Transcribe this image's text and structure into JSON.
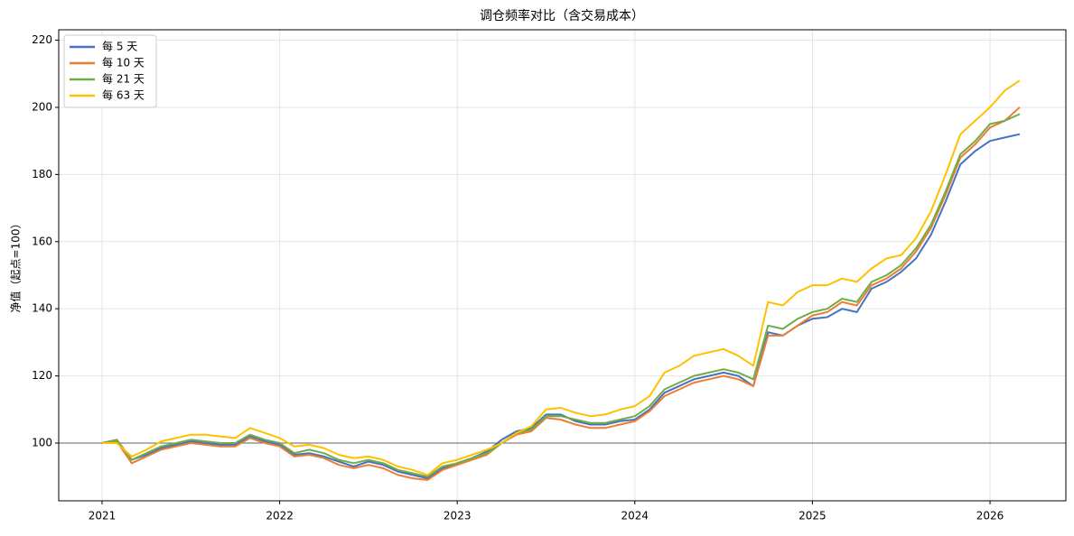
{
  "chart_data": {
    "type": "line",
    "title": "调仓频率对比（含交易成本）",
    "ylabel": "净值（起点=100）",
    "x": [
      2021.0,
      2021.083,
      2021.167,
      2021.25,
      2021.333,
      2021.417,
      2021.5,
      2021.583,
      2021.667,
      2021.75,
      2021.833,
      2021.917,
      2022.0,
      2022.083,
      2022.167,
      2022.25,
      2022.333,
      2022.417,
      2022.5,
      2022.583,
      2022.667,
      2022.75,
      2022.833,
      2022.917,
      2023.0,
      2023.083,
      2023.167,
      2023.25,
      2023.333,
      2023.417,
      2023.5,
      2023.583,
      2023.667,
      2023.75,
      2023.833,
      2023.917,
      2024.0,
      2024.083,
      2024.167,
      2024.25,
      2024.333,
      2024.417,
      2024.5,
      2024.583,
      2024.667,
      2024.75,
      2024.833,
      2024.917,
      2025.0,
      2025.083,
      2025.167,
      2025.25,
      2025.333,
      2025.417,
      2025.5,
      2025.583,
      2025.667,
      2025.75,
      2025.833,
      2025.917,
      2026.0,
      2026.083,
      2026.167
    ],
    "series": [
      {
        "name": "每 5 天",
        "color": "#4472c4",
        "values": [
          100,
          101,
          95,
          96.5,
          98.5,
          99.5,
          100.5,
          100,
          99.5,
          99.5,
          102,
          100.5,
          99.5,
          96.5,
          97,
          96,
          94.5,
          93,
          94.5,
          93.5,
          91.5,
          90.5,
          89.5,
          92.5,
          94,
          95.5,
          97.5,
          101,
          103.5,
          104.5,
          108.5,
          108.5,
          106.5,
          105.5,
          105.5,
          106.5,
          107,
          110,
          115,
          117,
          119,
          120,
          121,
          120,
          117,
          133,
          132,
          135,
          137,
          137.5,
          140,
          139,
          146,
          148,
          151,
          155,
          162,
          172,
          183,
          187,
          190,
          191,
          192
        ]
      },
      {
        "name": "每 10 天",
        "color": "#ed7d31",
        "values": [
          100,
          100.5,
          94,
          96,
          98,
          99,
          100,
          99.5,
          99,
          99,
          101.5,
          100,
          99,
          96,
          96.5,
          95.5,
          93.5,
          92.5,
          93.5,
          92.5,
          90.5,
          89.5,
          89,
          92,
          93.5,
          95,
          96.5,
          100,
          102.5,
          103.5,
          107.5,
          107,
          105.5,
          104.5,
          104.5,
          105.5,
          106.5,
          109.5,
          114,
          116,
          118,
          119,
          120,
          119,
          117,
          132,
          132,
          135,
          138,
          139,
          142,
          141,
          147,
          149,
          152,
          157,
          164,
          174,
          185,
          189,
          194,
          196,
          200
        ]
      },
      {
        "name": "每 21 天",
        "color": "#70ad47",
        "values": [
          100,
          101,
          95,
          97,
          99,
          100,
          101,
          100.5,
          100,
          100,
          102.5,
          101,
          100,
          97,
          98,
          97,
          95,
          94,
          95,
          94,
          92,
          91,
          90,
          93,
          94,
          95.5,
          97,
          100,
          103,
          104,
          108,
          108,
          107,
          106,
          106,
          107,
          108,
          111,
          116,
          118,
          120,
          121,
          122,
          121,
          119,
          135,
          134,
          137,
          139,
          140,
          143,
          142,
          148,
          150,
          153,
          158,
          165,
          175,
          186,
          190,
          195,
          196,
          198
        ]
      },
      {
        "name": "每 63 天",
        "color": "#ffc000",
        "values": [
          100,
          100,
          96,
          98,
          100.5,
          101.5,
          102.5,
          102.5,
          102,
          101.5,
          104.5,
          103,
          101.5,
          99,
          99.5,
          98.5,
          96.5,
          95.5,
          96,
          95,
          93,
          92,
          90.5,
          94,
          95,
          96.5,
          98,
          100,
          103,
          105,
          110,
          110.5,
          109,
          108,
          108.5,
          110,
          111,
          114,
          121,
          123,
          126,
          127,
          128,
          126,
          123,
          142,
          141,
          145,
          147,
          147,
          149,
          148,
          152,
          155,
          156,
          161,
          169,
          180,
          192,
          196,
          200,
          205,
          208
        ]
      }
    ],
    "hline": 100,
    "xlim": [
      2020.756,
      2026.427
    ],
    "xticks": [
      2021,
      2022,
      2023,
      2024,
      2025,
      2026
    ],
    "ylim": [
      82.8,
      223.1
    ],
    "yticks": [
      100,
      120,
      140,
      160,
      180,
      200,
      220
    ],
    "grid": true,
    "legend": "upper-left"
  }
}
